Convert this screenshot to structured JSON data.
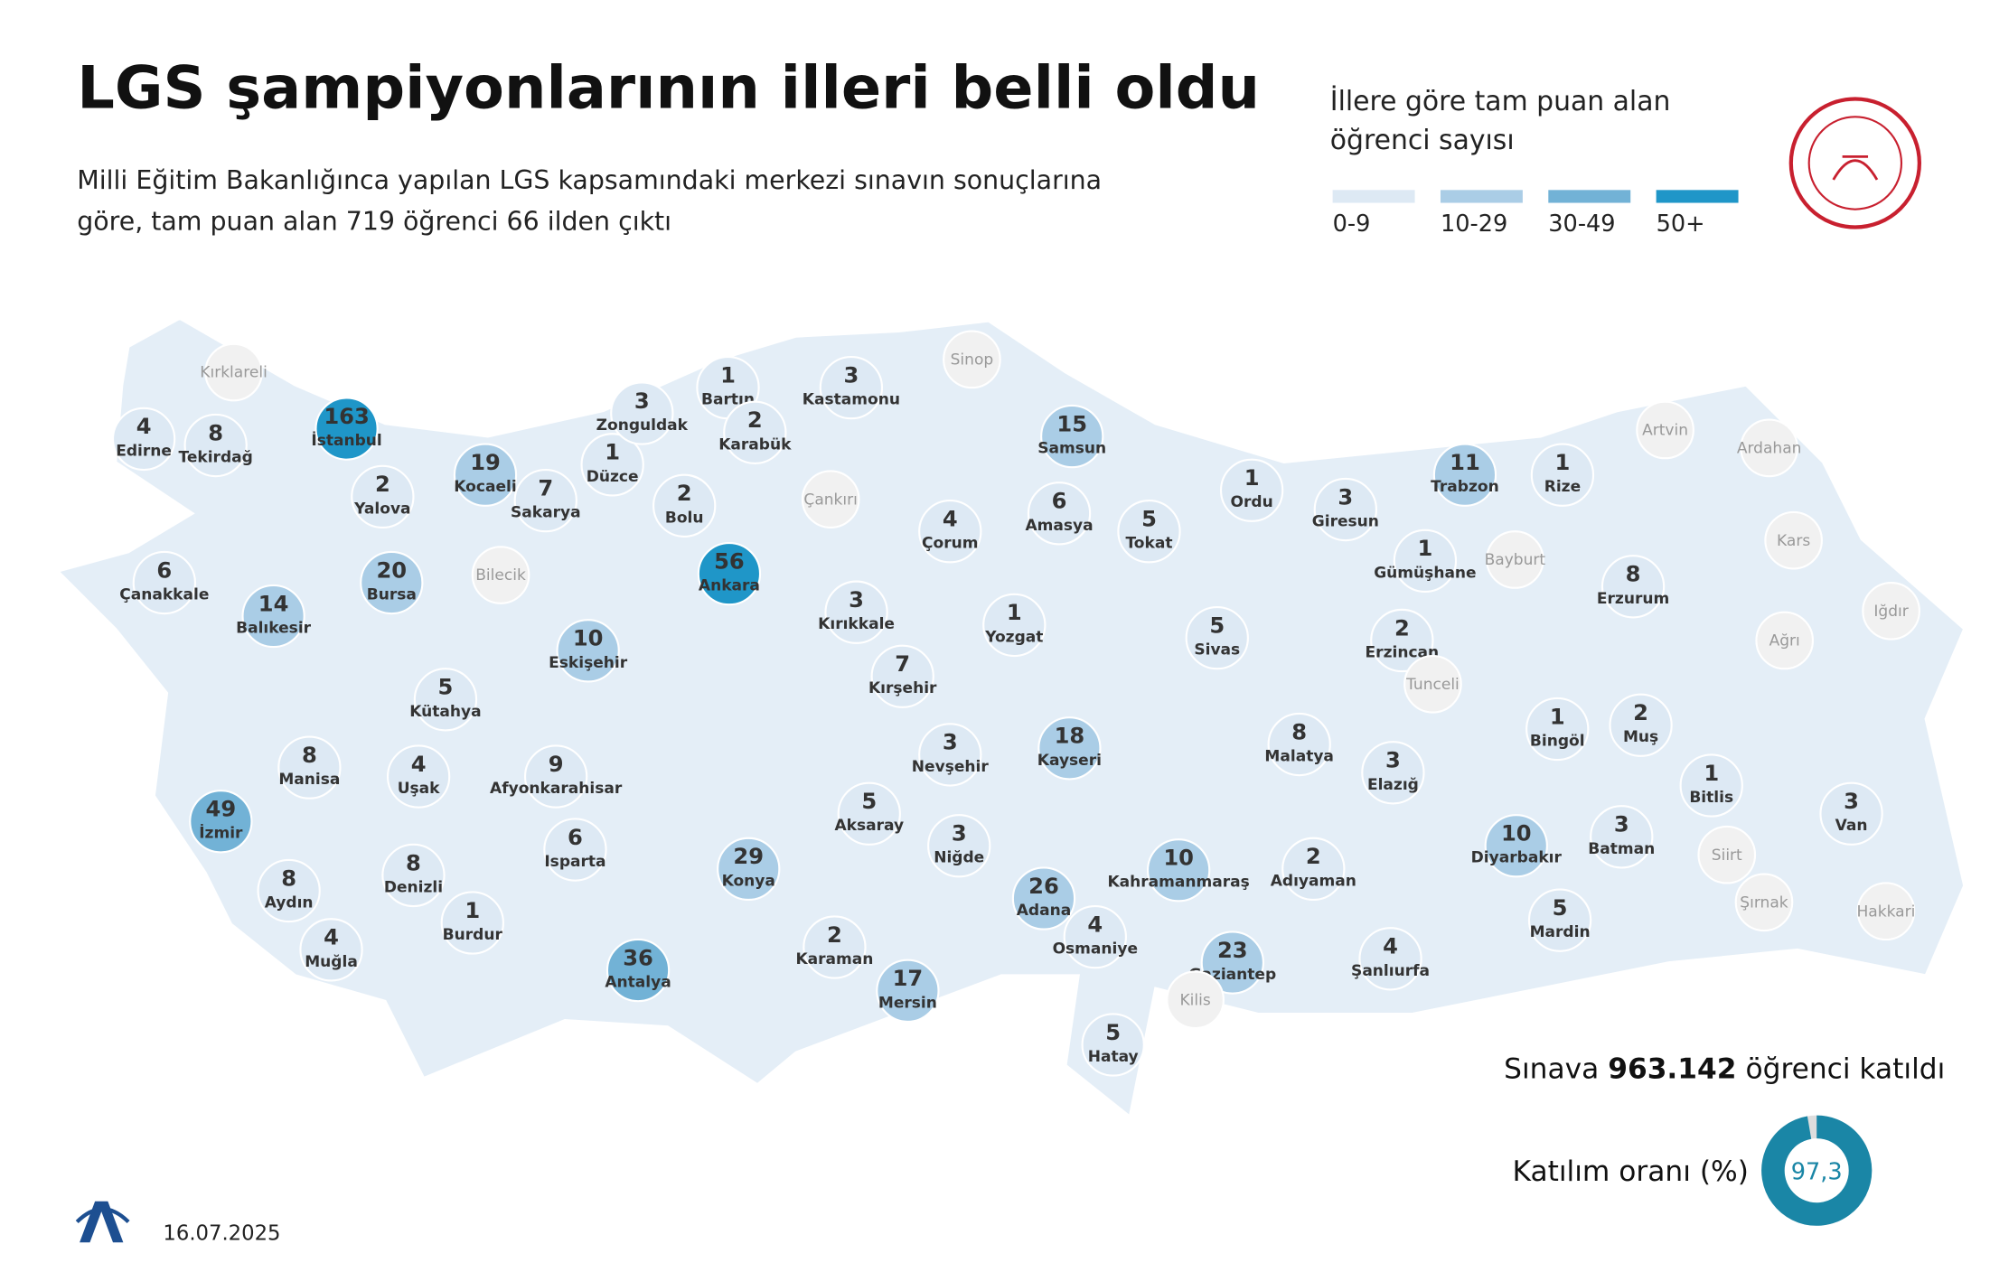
{
  "header": {
    "title": "LGS şampiyonlarının illeri belli oldu",
    "subtitle": "Milli Eğitim Bakanlığınca yapılan LGS kapsamındaki merkezi sınavın sonuçlarına göre, tam puan alan 719 öğrenci 66 ilden çıktı"
  },
  "legend": {
    "title": "İllere göre tam puan alan öğrenci sayısı",
    "classes": [
      {
        "label": "0-9",
        "color": "#dde9f4"
      },
      {
        "label": "10-29",
        "color": "#aacde6"
      },
      {
        "label": "30-49",
        "color": "#72b2d6"
      },
      {
        "label": "50+",
        "color": "#1f96c8"
      }
    ]
  },
  "null_color": "#f1f1f1",
  "provinces": [
    {
      "name": "Kırklareli",
      "value": null
    },
    {
      "name": "Edirne",
      "value": 4
    },
    {
      "name": "Tekirdağ",
      "value": 8
    },
    {
      "name": "İstanbul",
      "value": 163
    },
    {
      "name": "Yalova",
      "value": 2
    },
    {
      "name": "Kocaeli",
      "value": 19
    },
    {
      "name": "Sakarya",
      "value": 7
    },
    {
      "name": "Düzce",
      "value": 1
    },
    {
      "name": "Zonguldak",
      "value": 3
    },
    {
      "name": "Bartın",
      "value": 1
    },
    {
      "name": "Karabük",
      "value": 2
    },
    {
      "name": "Kastamonu",
      "value": 3
    },
    {
      "name": "Sinop",
      "value": null
    },
    {
      "name": "Samsun",
      "value": 15
    },
    {
      "name": "Bolu",
      "value": 2
    },
    {
      "name": "Çankırı",
      "value": null
    },
    {
      "name": "Çorum",
      "value": 4
    },
    {
      "name": "Amasya",
      "value": 6
    },
    {
      "name": "Tokat",
      "value": 5
    },
    {
      "name": "Ordu",
      "value": 1
    },
    {
      "name": "Giresun",
      "value": 3
    },
    {
      "name": "Trabzon",
      "value": 11
    },
    {
      "name": "Rize",
      "value": 1
    },
    {
      "name": "Artvin",
      "value": null
    },
    {
      "name": "Ardahan",
      "value": null
    },
    {
      "name": "Gümüşhane",
      "value": 1
    },
    {
      "name": "Bayburt",
      "value": null
    },
    {
      "name": "Erzurum",
      "value": 8
    },
    {
      "name": "Kars",
      "value": null
    },
    {
      "name": "Iğdır",
      "value": null
    },
    {
      "name": "Ağrı",
      "value": null
    },
    {
      "name": "Çanakkale",
      "value": 6
    },
    {
      "name": "Balıkesir",
      "value": 14
    },
    {
      "name": "Bursa",
      "value": 20
    },
    {
      "name": "Bilecik",
      "value": null
    },
    {
      "name": "Eskişehir",
      "value": 10
    },
    {
      "name": "Ankara",
      "value": 56
    },
    {
      "name": "Kırıkkale",
      "value": 3
    },
    {
      "name": "Yozgat",
      "value": 1
    },
    {
      "name": "Sivas",
      "value": 5
    },
    {
      "name": "Erzincan",
      "value": 2
    },
    {
      "name": "Tunceli",
      "value": null
    },
    {
      "name": "Kırşehir",
      "value": 7
    },
    {
      "name": "Kütahya",
      "value": 5
    },
    {
      "name": "Manisa",
      "value": 8
    },
    {
      "name": "Uşak",
      "value": 4
    },
    {
      "name": "Afyonkarahisar",
      "value": 9
    },
    {
      "name": "Nevşehir",
      "value": 3
    },
    {
      "name": "Kayseri",
      "value": 18
    },
    {
      "name": "Malatya",
      "value": 8
    },
    {
      "name": "Elazığ",
      "value": 3
    },
    {
      "name": "Bingöl",
      "value": 1
    },
    {
      "name": "Muş",
      "value": 2
    },
    {
      "name": "Bitlis",
      "value": 1
    },
    {
      "name": "Van",
      "value": 3
    },
    {
      "name": "İzmir",
      "value": 49
    },
    {
      "name": "Aksaray",
      "value": 5
    },
    {
      "name": "Niğde",
      "value": 3
    },
    {
      "name": "Isparta",
      "value": 6
    },
    {
      "name": "Konya",
      "value": 29
    },
    {
      "name": "Kahramanmaraş",
      "value": 10
    },
    {
      "name": "Adıyaman",
      "value": 2
    },
    {
      "name": "Diyarbakır",
      "value": 10
    },
    {
      "name": "Batman",
      "value": 3
    },
    {
      "name": "Siirt",
      "value": null
    },
    {
      "name": "Şırnak",
      "value": null
    },
    {
      "name": "Hakkari",
      "value": null
    },
    {
      "name": "Aydın",
      "value": 8
    },
    {
      "name": "Denizli",
      "value": 8
    },
    {
      "name": "Burdur",
      "value": 1
    },
    {
      "name": "Muğla",
      "value": 4
    },
    {
      "name": "Antalya",
      "value": 36
    },
    {
      "name": "Karaman",
      "value": 2
    },
    {
      "name": "Adana",
      "value": 26
    },
    {
      "name": "Osmaniye",
      "value": 4
    },
    {
      "name": "Gaziantep",
      "value": 23
    },
    {
      "name": "Şanlıurfa",
      "value": 4
    },
    {
      "name": "Mardin",
      "value": 5
    },
    {
      "name": "Mersin",
      "value": 17
    },
    {
      "name": "Kilis",
      "value": null
    },
    {
      "name": "Hatay",
      "value": 5
    }
  ],
  "participation": {
    "prefix": "Sınava",
    "count": "963.142",
    "suffix": "öğrenci katıldı"
  },
  "rate": {
    "title": "Katılım oranı (%)",
    "value": 97.3,
    "label": "97,3",
    "color": "#1a86a6"
  },
  "footer": {
    "date": "16.07.2025"
  }
}
